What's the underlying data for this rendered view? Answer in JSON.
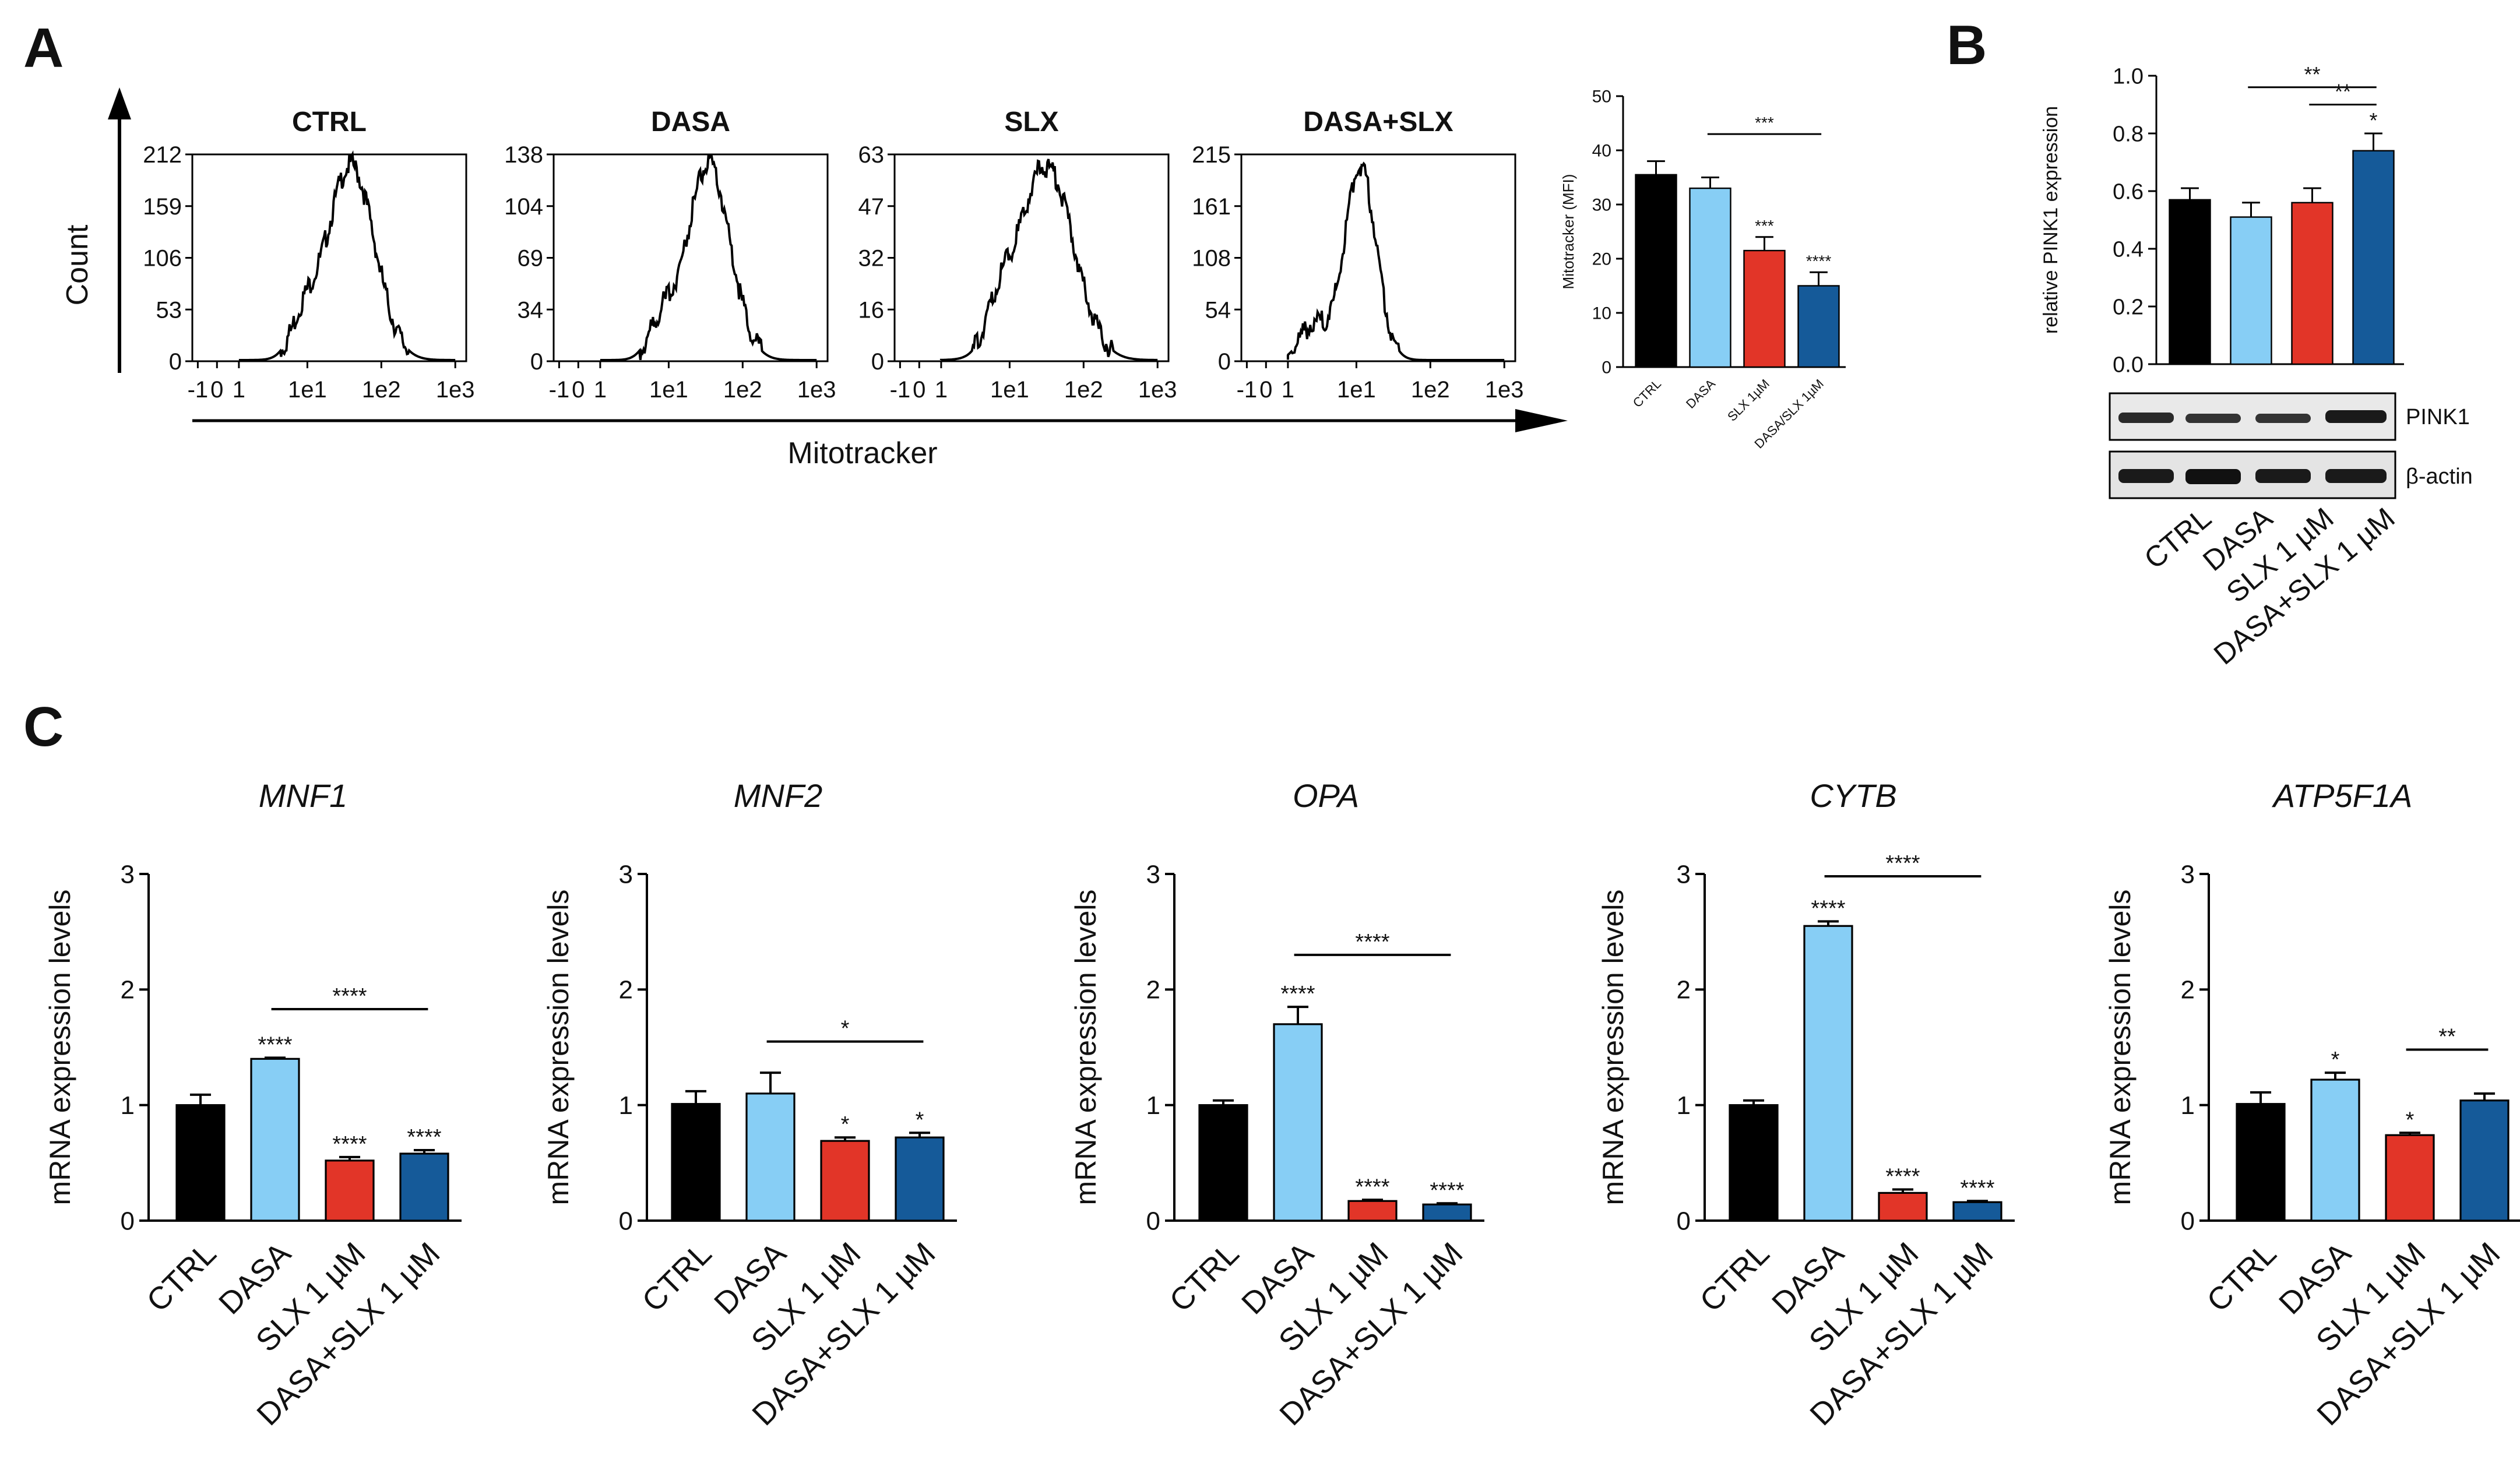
{
  "colors": {
    "CTRL": "#000000",
    "DASA": "#87cef5",
    "SLX": "#e23528",
    "DASA_SLX": "#155a99"
  },
  "panels": {
    "A": "A",
    "B": "B",
    "C": "C"
  },
  "panelA": {
    "y_axis_title": "Count",
    "x_axis_title": "Mitotracker",
    "x_ticks": [
      "-1",
      "0",
      "1",
      "1e1",
      "1e2",
      "1e3"
    ],
    "histograms": [
      {
        "title": "CTRL",
        "y_ticks": [
          "0",
          "53",
          "106",
          "159",
          "212"
        ],
        "peak_log": 1.55,
        "width": 0.33
      },
      {
        "title": "DASA",
        "y_ticks": [
          "0",
          "34",
          "69",
          "104",
          "138"
        ],
        "peak_log": 1.5,
        "width": 0.3
      },
      {
        "title": "SLX",
        "y_ticks": [
          "0",
          "16",
          "32",
          "47",
          "63"
        ],
        "peak_log": 1.45,
        "width": 0.38
      },
      {
        "title": "DASA+SLX",
        "y_ticks": [
          "0",
          "54",
          "108",
          "161",
          "215"
        ],
        "peak_log": 1.0,
        "width": 0.22
      }
    ]
  },
  "chart_data": [
    {
      "type": "bar",
      "id": "mitotracker-mfi",
      "title": "",
      "ylabel": "Mitotracker (MFI)",
      "categories": [
        "CTRL",
        "DASA",
        "SLX 1µM",
        "DASA/SLX 1µM"
      ],
      "values": [
        35.5,
        33,
        21.5,
        15
      ],
      "errors": [
        2.5,
        2,
        2.5,
        2.5
      ],
      "ylim": [
        0,
        50
      ],
      "yticks": [
        "0",
        "10",
        "20",
        "30",
        "40",
        "50"
      ],
      "bar_stars": [
        "",
        "",
        "***",
        "****"
      ],
      "brackets": [
        {
          "from": 1,
          "to": 3,
          "label": "***",
          "y": 43
        }
      ]
    },
    {
      "type": "bar",
      "id": "pink1",
      "title": "",
      "ylabel": "relative PINK1 expression",
      "categories": [
        "CTRL",
        "DASA",
        "SLX 1 µM",
        "DASA+SLX 1 µM"
      ],
      "values": [
        0.57,
        0.51,
        0.56,
        0.74
      ],
      "errors": [
        0.04,
        0.05,
        0.05,
        0.06
      ],
      "ylim": [
        0,
        1.0
      ],
      "yticks": [
        "0.0",
        "0.2",
        "0.4",
        "0.6",
        "0.8",
        "1.0"
      ],
      "bar_stars": [
        "",
        "",
        "",
        "*"
      ],
      "brackets": [
        {
          "from": 1,
          "to": 3,
          "label": "**",
          "y": 0.96
        },
        {
          "from": 2,
          "to": 3,
          "label": "**",
          "y": 0.9
        }
      ]
    },
    {
      "type": "bar",
      "id": "mnf1",
      "title": "MNF1",
      "ylabel": "mRNA expression levels",
      "categories": [
        "CTRL",
        "DASA",
        "SLX 1 µM",
        "DASA+SLX 1 µM"
      ],
      "values": [
        1.0,
        1.4,
        0.52,
        0.58
      ],
      "errors": [
        0.09,
        0.01,
        0.03,
        0.03
      ],
      "ylim": [
        0,
        3
      ],
      "yticks": [
        "0",
        "1",
        "2",
        "3"
      ],
      "bar_stars": [
        "",
        "****",
        "****",
        "****"
      ],
      "brackets": [
        {
          "from": 1,
          "to": 3,
          "label": "****",
          "y": 1.83
        }
      ]
    },
    {
      "type": "bar",
      "id": "mnf2",
      "title": "MNF2",
      "ylabel": "mRNA expression levels",
      "categories": [
        "CTRL",
        "DASA",
        "SLX 1 µM",
        "DASA+SLX 1 µM"
      ],
      "values": [
        1.01,
        1.1,
        0.69,
        0.72
      ],
      "errors": [
        0.11,
        0.18,
        0.03,
        0.04
      ],
      "ylim": [
        0,
        3
      ],
      "yticks": [
        "0",
        "1",
        "2",
        "3"
      ],
      "bar_stars": [
        "",
        "",
        "*",
        "*"
      ],
      "brackets": [
        {
          "from": 1,
          "to": 3,
          "label": "*",
          "y": 1.55
        }
      ]
    },
    {
      "type": "bar",
      "id": "opa",
      "title": "OPA",
      "ylabel": "mRNA expression levels",
      "categories": [
        "CTRL",
        "DASA",
        "SLX 1 µM",
        "DASA+SLX 1 µM"
      ],
      "values": [
        1.0,
        1.7,
        0.17,
        0.14
      ],
      "errors": [
        0.04,
        0.15,
        0.01,
        0.01
      ],
      "ylim": [
        0,
        3
      ],
      "yticks": [
        "0",
        "1",
        "2",
        "3"
      ],
      "bar_stars": [
        "",
        "****",
        "****",
        "****"
      ],
      "brackets": [
        {
          "from": 1,
          "to": 3,
          "label": "****",
          "y": 2.3
        }
      ]
    },
    {
      "type": "bar",
      "id": "cytb",
      "title": "CYTB",
      "ylabel": "mRNA expression levels",
      "categories": [
        "CTRL",
        "DASA",
        "SLX 1 µM",
        "DASA+SLX 1 µM"
      ],
      "values": [
        1.0,
        2.55,
        0.24,
        0.16
      ],
      "errors": [
        0.04,
        0.04,
        0.03,
        0.01
      ],
      "ylim": [
        0,
        3
      ],
      "yticks": [
        "0",
        "1",
        "2",
        "3"
      ],
      "bar_stars": [
        "",
        "****",
        "****",
        "****"
      ],
      "brackets": [
        {
          "from": 1,
          "to": 3,
          "label": "****",
          "y": 2.98
        }
      ]
    },
    {
      "type": "bar",
      "id": "atp5f1a",
      "title": "ATP5F1A",
      "ylabel": "mRNA expression levels",
      "categories": [
        "CTRL",
        "DASA",
        "SLX 1 µM",
        "DASA+SLX 1 µM"
      ],
      "values": [
        1.01,
        1.22,
        0.74,
        1.04
      ],
      "errors": [
        0.1,
        0.06,
        0.02,
        0.06
      ],
      "ylim": [
        0,
        3
      ],
      "yticks": [
        "0",
        "1",
        "2",
        "3"
      ],
      "bar_stars": [
        "",
        "*",
        "*",
        ""
      ],
      "brackets": [
        {
          "from": 2,
          "to": 3,
          "label": "**",
          "y": 1.48
        }
      ]
    }
  ],
  "western_blot": {
    "rows": [
      "PINK1",
      "β-actin"
    ]
  }
}
